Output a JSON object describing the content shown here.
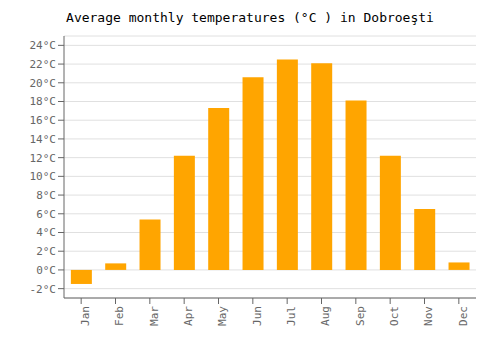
{
  "chart_data": {
    "type": "bar",
    "title": "Average monthly temperatures (°C ) in Dobroeşti",
    "categories": [
      "Jan",
      "Feb",
      "Mar",
      "Apr",
      "May",
      "Jun",
      "Jul",
      "Aug",
      "Sep",
      "Oct",
      "Nov",
      "Dec"
    ],
    "values": [
      -1.5,
      0.7,
      5.4,
      12.2,
      17.3,
      20.6,
      22.5,
      22.1,
      18.1,
      12.2,
      6.5,
      0.8
    ],
    "color": "#FFA500",
    "ylim": [
      -3,
      25
    ],
    "yticks": [
      {
        "value": -2,
        "label": "-2°C"
      },
      {
        "value": 0,
        "label": "0°C"
      },
      {
        "value": 2,
        "label": "2°C"
      },
      {
        "value": 4,
        "label": "4°C"
      },
      {
        "value": 6,
        "label": "6°C"
      },
      {
        "value": 8,
        "label": "8°C"
      },
      {
        "value": 10,
        "label": "10°C"
      },
      {
        "value": 12,
        "label": "12°C"
      },
      {
        "value": 14,
        "label": "14°C"
      },
      {
        "value": 16,
        "label": "16°C"
      },
      {
        "value": 18,
        "label": "18°C"
      },
      {
        "value": 20,
        "label": "20°C"
      },
      {
        "value": 22,
        "label": "22°C"
      },
      {
        "value": 24,
        "label": "24°C"
      }
    ],
    "grid": true
  }
}
